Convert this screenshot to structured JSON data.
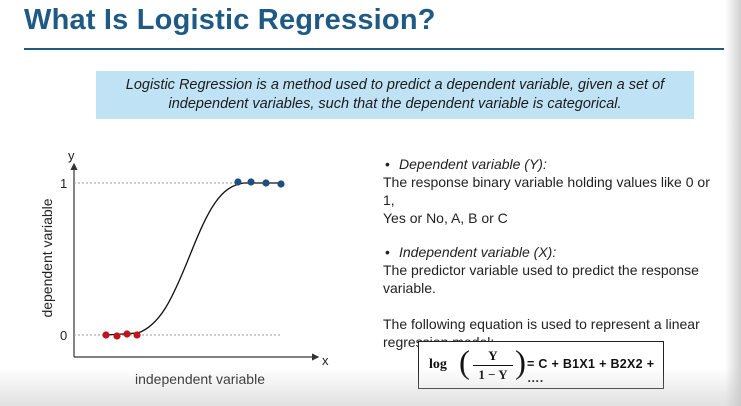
{
  "slide": {
    "title": "What Is Logistic Regression?",
    "definition_line1": "Logistic Regression is a method used to predict a dependent variable, given a set of",
    "definition_line2": "independent variables, such that the dependent variable is categorical."
  },
  "diagram": {
    "y_axis_letter": "y",
    "x_axis_letter": "x",
    "y_axis_title": "dependent variable",
    "x_axis_title": "independent variable",
    "tick_top": "1",
    "tick_bottom": "0",
    "colors": {
      "low_points": "#c0161b",
      "high_points": "#1d4f7e",
      "curve": "#111111",
      "guides": "#9a9a9a"
    },
    "low_group": {
      "label": "0",
      "point_count": 4
    },
    "high_group": {
      "label": "1",
      "point_count": 4
    }
  },
  "info": {
    "bullet": "•",
    "dep_heading": "Dependent variable (Y):",
    "dep_line1": "The response binary variable holding values like 0 or 1,",
    "dep_line2": "Yes or No, A, B or C",
    "indep_heading": "Independent variable (X):",
    "indep_line1": "The predictor variable used to predict the response",
    "indep_line2": "variable.",
    "eq_intro_line1": "The following equation is used to represent a linear",
    "eq_intro_line2": "regression model:"
  },
  "equation": {
    "log": "log",
    "open_paren": "(",
    "close_paren": ")",
    "numerator": "Y",
    "denominator": "1 − Y",
    "rhs": "= C + B1X1 + B2X2 + …."
  }
}
